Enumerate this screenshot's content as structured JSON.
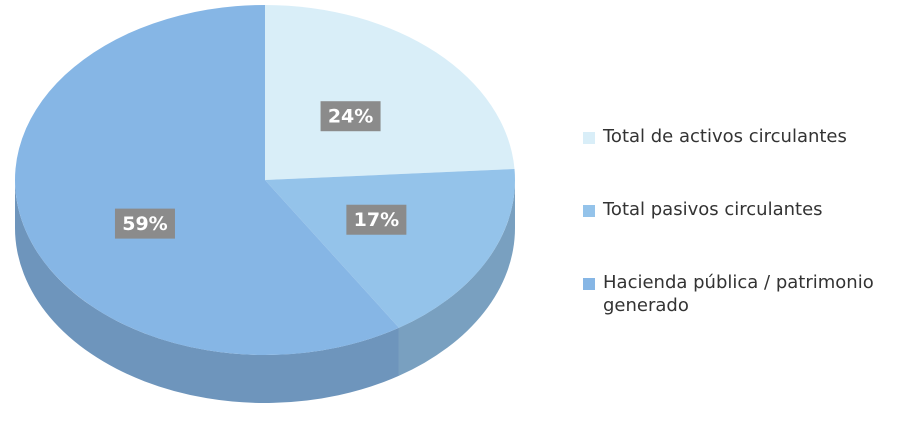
{
  "chart_data": {
    "type": "pie",
    "categories": [
      "Total de activos circulantes",
      "Total pasivos circulantes",
      "Hacienda pública / patrimonio generado"
    ],
    "values": [
      24,
      17,
      59
    ],
    "value_labels": [
      "24%",
      "17%",
      "59%"
    ],
    "colors": [
      "#d9eef8",
      "#94c3ea",
      "#86b6e5"
    ],
    "legend": "right"
  }
}
